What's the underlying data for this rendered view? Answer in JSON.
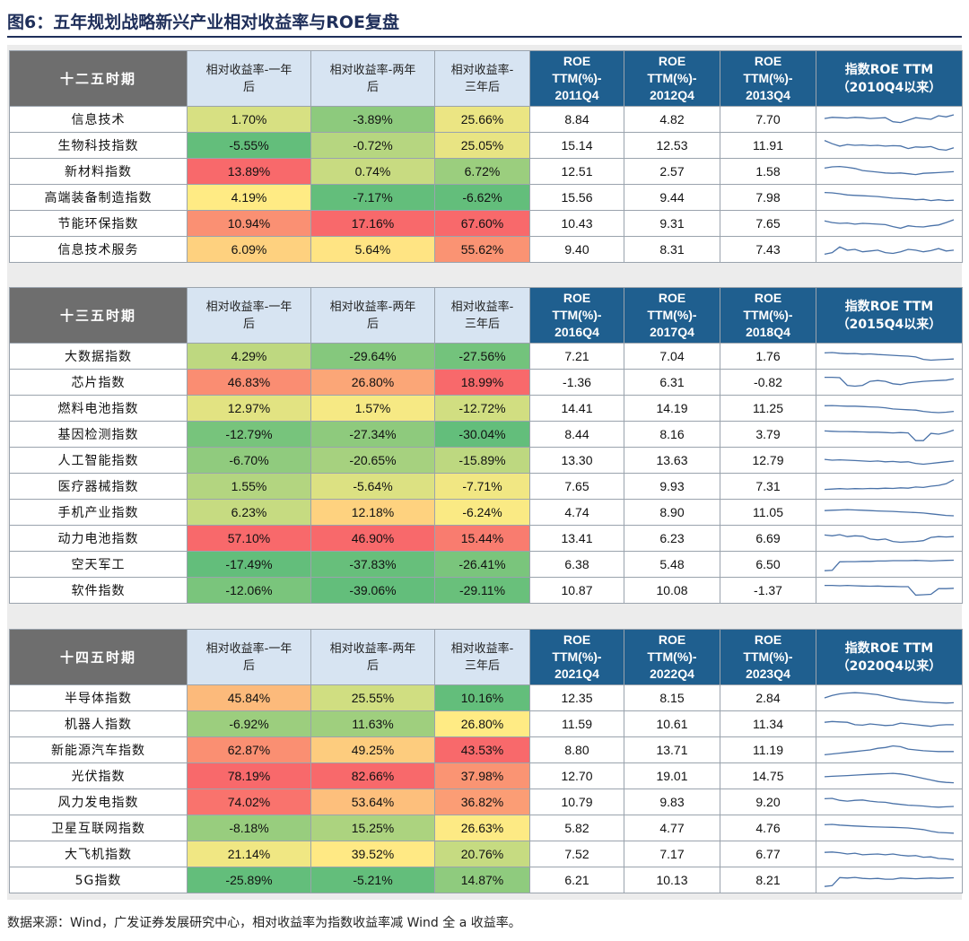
{
  "title": "图6：五年规划战略新兴产业相对收益率与ROE复盘",
  "source": "数据来源：Wind，广发证券发展研究中心，相对收益率为指数收益率减 Wind 全 a 收益率。",
  "headers": {
    "ret1": [
      "相对收益率-一年",
      "后"
    ],
    "ret2": [
      "相对收益率-两年",
      "后"
    ],
    "ret3": [
      "相对收益率-",
      "三年后"
    ]
  },
  "blocks": [
    {
      "period": "十二五时期",
      "roe_cols": [
        [
          "ROE",
          "TTM(%)-",
          "2011Q4"
        ],
        [
          "ROE",
          "TTM(%)-",
          "2012Q4"
        ],
        [
          "ROE",
          "TTM(%)-",
          "2013Q4"
        ]
      ],
      "spark_header": [
        "指数ROE TTM",
        "（2010Q4以来）"
      ],
      "rows": [
        {
          "name": "信息技术",
          "r1": "1.70%",
          "r2": "-3.89%",
          "r3": "25.66%",
          "roe": [
            "8.84",
            "4.82",
            "7.70"
          ],
          "spark": [
            0.55,
            0.62,
            0.6,
            0.58,
            0.62,
            0.6,
            0.55,
            0.58,
            0.6,
            0.35,
            0.3,
            0.45,
            0.6,
            0.55,
            0.5,
            0.72,
            0.65,
            0.78
          ]
        },
        {
          "name": "生物科技指数",
          "r1": "-5.55%",
          "r2": "-0.72%",
          "r3": "25.05%",
          "roe": [
            "15.14",
            "12.53",
            "11.91"
          ],
          "spark": [
            0.8,
            0.6,
            0.45,
            0.55,
            0.5,
            0.52,
            0.48,
            0.5,
            0.45,
            0.48,
            0.46,
            0.3,
            0.4,
            0.38,
            0.42,
            0.25,
            0.2,
            0.35
          ]
        },
        {
          "name": "新材料指数",
          "r1": "13.89%",
          "r2": "0.74%",
          "r3": "6.72%",
          "roe": [
            "12.51",
            "2.57",
            "1.58"
          ],
          "spark": [
            0.7,
            0.78,
            0.8,
            0.75,
            0.68,
            0.55,
            0.5,
            0.45,
            0.4,
            0.38,
            0.4,
            0.35,
            0.3,
            0.38,
            0.4,
            0.42,
            0.45,
            0.48
          ]
        },
        {
          "name": "高端装备制造指数",
          "r1": "4.19%",
          "r2": "-7.17%",
          "r3": "-6.62%",
          "roe": [
            "15.56",
            "9.44",
            "7.98"
          ],
          "spark": [
            0.8,
            0.78,
            0.72,
            0.65,
            0.62,
            0.6,
            0.58,
            0.55,
            0.5,
            0.45,
            0.42,
            0.4,
            0.35,
            0.38,
            0.3,
            0.35,
            0.3,
            0.32
          ]
        },
        {
          "name": "节能环保指数",
          "r1": "10.94%",
          "r2": "17.16%",
          "r3": "67.60%",
          "roe": [
            "10.43",
            "9.31",
            "7.65"
          ],
          "spark": [
            0.65,
            0.55,
            0.5,
            0.52,
            0.45,
            0.5,
            0.48,
            0.45,
            0.42,
            0.3,
            0.2,
            0.35,
            0.3,
            0.28,
            0.35,
            0.4,
            0.55,
            0.72
          ]
        },
        {
          "name": "信息技术服务",
          "r1": "6.09%",
          "r2": "5.64%",
          "r3": "55.62%",
          "roe": [
            "9.40",
            "8.31",
            "7.43"
          ],
          "spark": [
            0.2,
            0.3,
            0.65,
            0.45,
            0.5,
            0.35,
            0.4,
            0.45,
            0.3,
            0.25,
            0.35,
            0.5,
            0.45,
            0.35,
            0.42,
            0.55,
            0.4,
            0.45
          ]
        }
      ]
    },
    {
      "period": "十三五时期",
      "roe_cols": [
        [
          "ROE",
          "TTM(%)-",
          "2016Q4"
        ],
        [
          "ROE",
          "TTM(%)-",
          "2017Q4"
        ],
        [
          "ROE",
          "TTM(%)-",
          "2018Q4"
        ]
      ],
      "spark_header": [
        "指数ROE TTM",
        "（2015Q4以来）"
      ],
      "rows": [
        {
          "name": "大数据指数",
          "r1": "4.29%",
          "r2": "-29.64%",
          "r3": "-27.56%",
          "roe": [
            "7.21",
            "7.04",
            "1.76"
          ],
          "spark": [
            0.7,
            0.72,
            0.68,
            0.65,
            0.66,
            0.62,
            0.64,
            0.6,
            0.58,
            0.55,
            0.52,
            0.5,
            0.45,
            0.3,
            0.25,
            0.28,
            0.3,
            0.32
          ]
        },
        {
          "name": "芯片指数",
          "r1": "46.83%",
          "r2": "26.80%",
          "r3": "18.99%",
          "roe": [
            "-1.36",
            "6.31",
            "-0.82"
          ],
          "spark": [
            0.8,
            0.8,
            0.78,
            0.3,
            0.25,
            0.3,
            0.55,
            0.6,
            0.55,
            0.4,
            0.35,
            0.45,
            0.5,
            0.55,
            0.58,
            0.6,
            0.62,
            0.7
          ]
        },
        {
          "name": "燃料电池指数",
          "r1": "12.97%",
          "r2": "1.57%",
          "r3": "-12.72%",
          "roe": [
            "14.41",
            "14.19",
            "11.25"
          ],
          "spark": [
            0.65,
            0.66,
            0.64,
            0.62,
            0.62,
            0.6,
            0.58,
            0.56,
            0.52,
            0.45,
            0.42,
            0.4,
            0.38,
            0.3,
            0.25,
            0.22,
            0.25,
            0.3
          ]
        },
        {
          "name": "基因检测指数",
          "r1": "-12.79%",
          "r2": "-27.34%",
          "r3": "-30.04%",
          "roe": [
            "8.44",
            "8.16",
            "3.79"
          ],
          "spark": [
            0.7,
            0.68,
            0.66,
            0.66,
            0.65,
            0.64,
            0.62,
            0.62,
            0.6,
            0.58,
            0.6,
            0.58,
            0.1,
            0.1,
            0.55,
            0.5,
            0.6,
            0.75
          ]
        },
        {
          "name": "人工智能指数",
          "r1": "-6.70%",
          "r2": "-20.65%",
          "r3": "-15.89%",
          "roe": [
            "13.30",
            "13.63",
            "12.79"
          ],
          "spark": [
            0.55,
            0.5,
            0.52,
            0.5,
            0.48,
            0.45,
            0.42,
            0.45,
            0.4,
            0.42,
            0.38,
            0.4,
            0.3,
            0.25,
            0.3,
            0.35,
            0.4,
            0.45
          ]
        },
        {
          "name": "医疗器械指数",
          "r1": "1.55%",
          "r2": "-5.64%",
          "r3": "-7.71%",
          "roe": [
            "7.65",
            "9.93",
            "7.31"
          ],
          "spark": [
            0.3,
            0.32,
            0.35,
            0.33,
            0.35,
            0.34,
            0.36,
            0.35,
            0.38,
            0.36,
            0.4,
            0.38,
            0.45,
            0.42,
            0.5,
            0.55,
            0.65,
            0.9
          ]
        },
        {
          "name": "手机产业指数",
          "r1": "6.23%",
          "r2": "12.18%",
          "r3": "-6.24%",
          "roe": [
            "4.74",
            "8.90",
            "11.05"
          ],
          "spark": [
            0.6,
            0.62,
            0.64,
            0.66,
            0.64,
            0.62,
            0.6,
            0.58,
            0.56,
            0.55,
            0.52,
            0.5,
            0.48,
            0.45,
            0.4,
            0.35,
            0.3,
            0.28
          ]
        },
        {
          "name": "动力电池指数",
          "r1": "57.10%",
          "r2": "46.90%",
          "r3": "15.44%",
          "roe": [
            "13.41",
            "6.23",
            "6.69"
          ],
          "spark": [
            0.7,
            0.65,
            0.72,
            0.6,
            0.65,
            0.62,
            0.45,
            0.4,
            0.45,
            0.3,
            0.25,
            0.28,
            0.3,
            0.35,
            0.55,
            0.6,
            0.58,
            0.6
          ]
        },
        {
          "name": "空天军工",
          "r1": "-17.49%",
          "r2": "-37.83%",
          "r3": "-26.41%",
          "roe": [
            "6.38",
            "5.48",
            "6.50"
          ],
          "spark": [
            0.1,
            0.12,
            0.65,
            0.66,
            0.66,
            0.68,
            0.68,
            0.7,
            0.7,
            0.72,
            0.72,
            0.72,
            0.74,
            0.72,
            0.7,
            0.72,
            0.74,
            0.75
          ]
        },
        {
          "name": "软件指数",
          "r1": "-12.06%",
          "r2": "-39.06%",
          "r3": "-29.11%",
          "roe": [
            "10.87",
            "10.08",
            "-1.37"
          ],
          "spark": [
            0.8,
            0.8,
            0.78,
            0.8,
            0.78,
            0.76,
            0.75,
            0.76,
            0.74,
            0.74,
            0.72,
            0.72,
            0.2,
            0.22,
            0.25,
            0.6,
            0.6,
            0.62
          ]
        }
      ]
    },
    {
      "period": "十四五时期",
      "roe_cols": [
        [
          "ROE",
          "TTM(%)-",
          "2021Q4"
        ],
        [
          "ROE",
          "TTM(%)-",
          "2022Q4"
        ],
        [
          "ROE",
          "TTM(%)-",
          "2023Q4"
        ]
      ],
      "spark_header": [
        "指数ROE TTM",
        "（2020Q4以来）"
      ],
      "rows": [
        {
          "name": "半导体指数",
          "r1": "45.84%",
          "r2": "25.55%",
          "r3": "10.16%",
          "roe": [
            "12.35",
            "8.15",
            "2.84"
          ],
          "spark": [
            0.5,
            0.65,
            0.75,
            0.8,
            0.82,
            0.8,
            0.75,
            0.7,
            0.6,
            0.5,
            0.4,
            0.35,
            0.3,
            0.25,
            0.22,
            0.2,
            0.18,
            0.2
          ]
        },
        {
          "name": "机器人指数",
          "r1": "-6.92%",
          "r2": "11.63%",
          "r3": "26.80%",
          "roe": [
            "11.59",
            "10.61",
            "11.34"
          ],
          "spark": [
            0.6,
            0.65,
            0.62,
            0.6,
            0.45,
            0.42,
            0.5,
            0.45,
            0.4,
            0.42,
            0.55,
            0.5,
            0.45,
            0.4,
            0.35,
            0.42,
            0.45,
            0.45
          ]
        },
        {
          "name": "新能源汽车指数",
          "r1": "62.87%",
          "r2": "49.25%",
          "r3": "43.53%",
          "roe": [
            "8.80",
            "13.71",
            "11.19"
          ],
          "spark": [
            0.2,
            0.25,
            0.3,
            0.35,
            0.4,
            0.45,
            0.5,
            0.6,
            0.65,
            0.75,
            0.7,
            0.55,
            0.5,
            0.45,
            0.42,
            0.4,
            0.4,
            0.4
          ]
        },
        {
          "name": "光伏指数",
          "r1": "78.19%",
          "r2": "82.66%",
          "r3": "37.98%",
          "roe": [
            "12.70",
            "19.01",
            "14.75"
          ],
          "spark": [
            0.45,
            0.48,
            0.5,
            0.52,
            0.55,
            0.58,
            0.6,
            0.62,
            0.64,
            0.66,
            0.62,
            0.55,
            0.45,
            0.35,
            0.25,
            0.15,
            0.1,
            0.08
          ]
        },
        {
          "name": "风力发电指数",
          "r1": "74.02%",
          "r2": "53.64%",
          "r3": "36.82%",
          "roe": [
            "10.79",
            "9.83",
            "9.20"
          ],
          "spark": [
            0.7,
            0.72,
            0.6,
            0.55,
            0.6,
            0.62,
            0.55,
            0.5,
            0.48,
            0.4,
            0.35,
            0.3,
            0.28,
            0.25,
            0.2,
            0.18,
            0.2,
            0.22
          ]
        },
        {
          "name": "卫星互联网指数",
          "r1": "-8.18%",
          "r2": "15.25%",
          "r3": "26.63%",
          "roe": [
            "5.82",
            "4.77",
            "4.76"
          ],
          "spark": [
            0.7,
            0.72,
            0.68,
            0.65,
            0.62,
            0.6,
            0.58,
            0.56,
            0.55,
            0.54,
            0.52,
            0.5,
            0.45,
            0.4,
            0.3,
            0.22,
            0.2,
            0.18
          ]
        },
        {
          "name": "大飞机指数",
          "r1": "21.14%",
          "r2": "39.52%",
          "r3": "20.76%",
          "roe": [
            "7.52",
            "7.17",
            "6.77"
          ],
          "spark": [
            0.6,
            0.62,
            0.58,
            0.5,
            0.55,
            0.45,
            0.48,
            0.5,
            0.45,
            0.5,
            0.42,
            0.38,
            0.4,
            0.3,
            0.32,
            0.22,
            0.2,
            0.15
          ]
        },
        {
          "name": "5G指数",
          "r1": "-25.89%",
          "r2": "-5.21%",
          "r3": "14.87%",
          "roe": [
            "6.21",
            "10.13",
            "8.21"
          ],
          "spark": [
            0.1,
            0.15,
            0.65,
            0.62,
            0.66,
            0.6,
            0.58,
            0.6,
            0.55,
            0.55,
            0.62,
            0.6,
            0.58,
            0.6,
            0.62,
            0.6,
            0.62,
            0.64
          ]
        }
      ]
    }
  ],
  "colors": {
    "header_grey": "#6e6e6e",
    "header_blue": "#1f5f8f",
    "header_light": "#d7e4f2",
    "spark_line": "#4a72a8",
    "scale_low": "#63be7b",
    "scale_mid": "#ffeb84",
    "scale_high": "#f8696b"
  }
}
